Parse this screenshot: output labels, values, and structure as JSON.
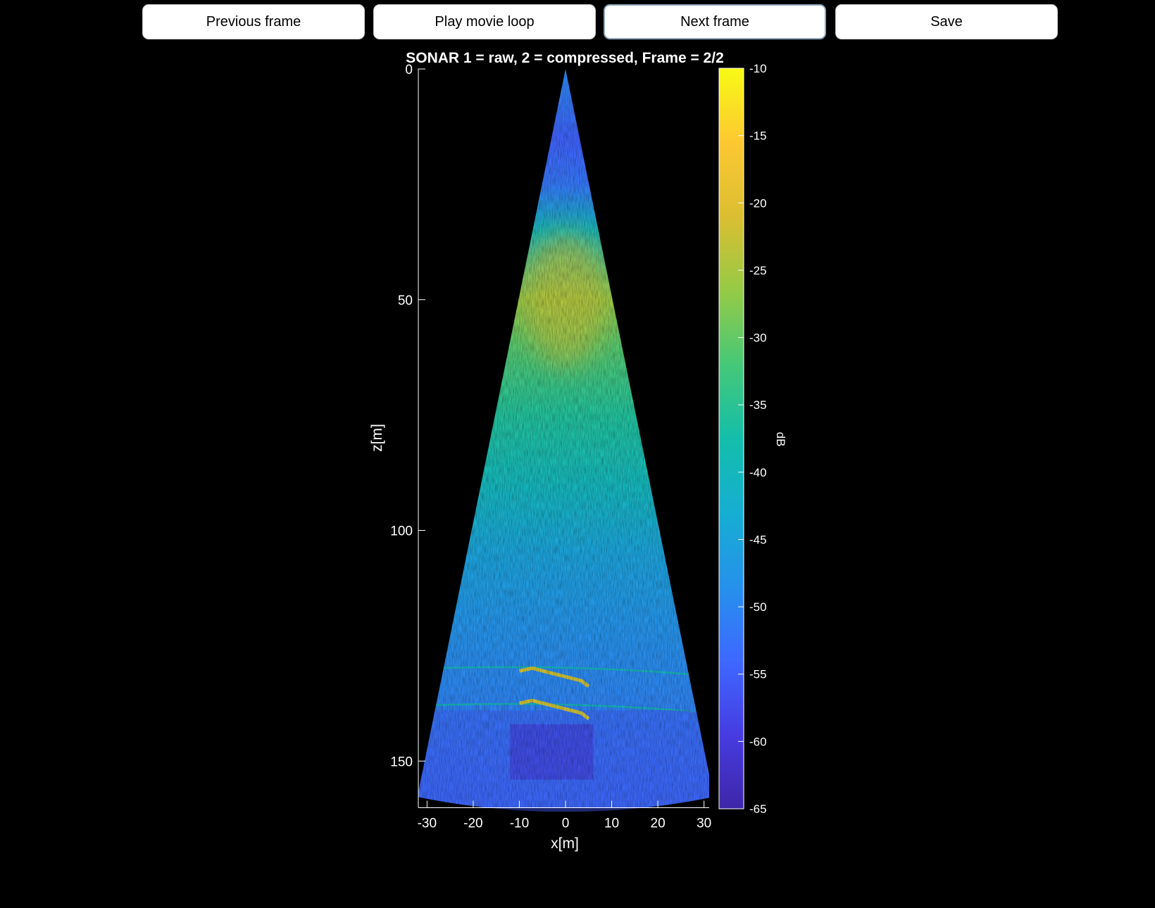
{
  "toolbar": {
    "prev_label": "Previous frame",
    "play_label": "Play movie loop",
    "next_label": "Next frame",
    "save_label": "Save"
  },
  "colors": {
    "background": "#000000",
    "axes": "#ffffff",
    "button_bg": "#ffffff",
    "focused_border": "#8fa6bd",
    "colormap": "parula"
  },
  "chart_data": {
    "type": "heatmap",
    "title": "SONAR 1 = raw, 2 = compressed, Frame = 2/2",
    "xlabel": "x[m]",
    "ylabel": "z[m]",
    "xlim": [
      -32,
      32
    ],
    "ylim": [
      0,
      160
    ],
    "y_reversed": true,
    "x_ticks": [
      -30,
      -20,
      -10,
      0,
      10,
      20,
      30
    ],
    "y_ticks": [
      0,
      50,
      100,
      150
    ],
    "x_tick_labels": [
      "-30",
      "-20",
      "-10",
      "0",
      "10",
      "20",
      "30"
    ],
    "y_tick_labels": [
      "0",
      "50",
      "100",
      "150"
    ],
    "fan_half_angle_deg": 11.5,
    "max_range": 161,
    "colorbar": {
      "label": "dB",
      "clim": [
        -65,
        -10
      ],
      "ticks": [
        -10,
        -15,
        -20,
        -25,
        -30,
        -35,
        -40,
        -45,
        -50,
        -55,
        -60,
        -65
      ],
      "tick_labels": [
        "-10",
        "-15",
        "-20",
        "-25",
        "-30",
        "-35",
        "-40",
        "-45",
        "-50",
        "-55",
        "-60",
        "-65"
      ]
    },
    "intensity_profile": [
      {
        "z": 2,
        "db": -50
      },
      {
        "z": 15,
        "db": -55
      },
      {
        "z": 25,
        "db": -52
      },
      {
        "z": 35,
        "db": -40
      },
      {
        "z": 50,
        "db": -27
      },
      {
        "z": 60,
        "db": -31
      },
      {
        "z": 75,
        "db": -36
      },
      {
        "z": 90,
        "db": -40
      },
      {
        "z": 105,
        "db": -45
      },
      {
        "z": 120,
        "db": -48
      },
      {
        "z": 135,
        "db": -50
      },
      {
        "z": 150,
        "db": -52
      },
      {
        "z": 161,
        "db": -53
      }
    ],
    "features": [
      {
        "name": "bright echo upper",
        "z": 132,
        "x_from": -10,
        "x_to": 5,
        "db": -22
      },
      {
        "name": "bright echo lower",
        "z": 139,
        "x_from": -10,
        "x_to": 5,
        "db": -22
      },
      {
        "name": "shadow region",
        "z_from": 142,
        "z_to": 154,
        "x_from": -12,
        "x_to": 6,
        "db": -62
      }
    ]
  }
}
